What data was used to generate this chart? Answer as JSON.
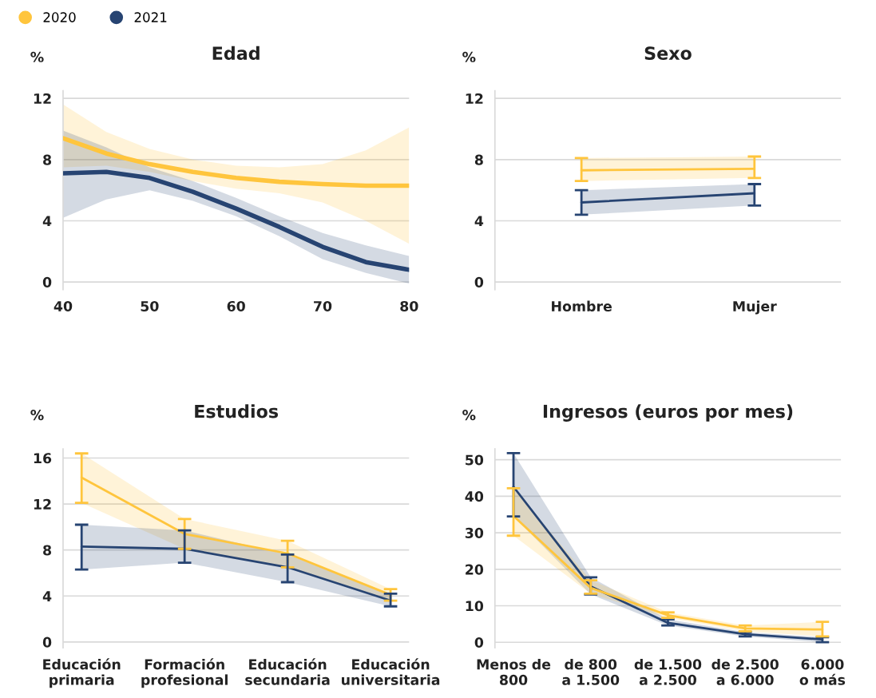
{
  "chart_data": [
    {
      "type": "line",
      "title": "Edad",
      "ylabel": "%",
      "xlim": [
        40,
        80
      ],
      "xticks": [
        40,
        50,
        60,
        70,
        80
      ],
      "ylim": [
        -0.5,
        12.5
      ],
      "yticks": [
        0,
        4,
        8,
        12
      ],
      "grid": "y",
      "legend": "top left",
      "marker": "none",
      "line_style": "solid",
      "x": [
        40,
        45,
        50,
        55,
        60,
        65,
        70,
        75,
        80
      ],
      "series": [
        {
          "name": "2020",
          "color": "#ffc53d",
          "values": [
            9.4,
            8.4,
            7.7,
            7.2,
            6.8,
            6.55,
            6.4,
            6.3,
            6.3
          ],
          "lower": [
            7.5,
            7.6,
            7.2,
            6.6,
            6.1,
            5.8,
            5.2,
            4.0,
            2.5
          ],
          "upper": [
            11.6,
            9.8,
            8.7,
            8.0,
            7.6,
            7.5,
            7.7,
            8.6,
            10.1
          ]
        },
        {
          "name": "2021",
          "color": "#274472",
          "values": [
            7.1,
            7.2,
            6.8,
            5.9,
            4.8,
            3.6,
            2.3,
            1.3,
            0.8
          ],
          "lower": [
            4.2,
            5.4,
            6.0,
            5.3,
            4.3,
            3.0,
            1.5,
            0.6,
            -0.1
          ],
          "upper": [
            9.9,
            8.8,
            7.5,
            6.6,
            5.5,
            4.3,
            3.2,
            2.4,
            1.7
          ]
        }
      ]
    },
    {
      "type": "line",
      "title": "Sexo",
      "ylabel": "%",
      "categories": [
        "Hombre",
        "Mujer"
      ],
      "ylim": [
        -0.5,
        12.5
      ],
      "yticks": [
        0,
        4,
        8,
        12
      ],
      "grid": "y",
      "marker": "none",
      "line_style": "solid",
      "series": [
        {
          "color": "#ffc53d",
          "values": [
            7.3,
            7.4
          ],
          "errors": [
            [
              6.6,
              8.1
            ],
            [
              6.8,
              8.2
            ]
          ],
          "lower": [
            6.6,
            6.8
          ],
          "upper": [
            8.1,
            8.2
          ]
        },
        {
          "color": "#274472",
          "values": [
            5.2,
            5.8
          ],
          "errors": [
            [
              4.4,
              6.0
            ],
            [
              5.0,
              6.4
            ]
          ],
          "lower": [
            4.4,
            5.0
          ],
          "upper": [
            6.0,
            6.4
          ]
        }
      ]
    },
    {
      "type": "line",
      "title": "Estudios",
      "ylabel": "%",
      "categories": [
        "Educación\nprimaria",
        "Formación\nprofesional",
        "Educación\nsecundaria",
        "Educación\nuniversitaria"
      ],
      "ylim": [
        -0.5,
        16.8
      ],
      "yticks": [
        0,
        4,
        8,
        12,
        16
      ],
      "grid": "y",
      "marker": "none",
      "line_style": "solid",
      "series": [
        {
          "color": "#ffc53d",
          "values": [
            14.3,
            9.4,
            7.7,
            4.1
          ],
          "errors": [
            [
              12.1,
              16.4
            ],
            [
              8.1,
              10.7
            ],
            [
              6.5,
              8.8
            ],
            [
              3.6,
              4.6
            ]
          ],
          "lower": [
            12.1,
            8.1,
            6.5,
            3.6
          ],
          "upper": [
            16.4,
            10.7,
            8.8,
            4.6
          ]
        },
        {
          "color": "#274472",
          "values": [
            8.3,
            8.1,
            6.5,
            3.6
          ],
          "errors": [
            [
              6.3,
              10.2
            ],
            [
              6.9,
              9.7
            ],
            [
              5.2,
              7.6
            ],
            [
              3.1,
              4.2
            ]
          ],
          "lower": [
            6.3,
            6.9,
            5.2,
            3.1
          ],
          "upper": [
            10.2,
            9.7,
            7.6,
            4.2
          ]
        }
      ]
    },
    {
      "type": "line",
      "title": "Ingresos (euros por mes)",
      "ylabel": "%",
      "categories": [
        "Menos de\n800",
        "de 800\na 1.500",
        "de 1.500\na 2.500",
        "de 2.500\na 6.000",
        "6.000\no más"
      ],
      "ylim": [
        -1.5,
        53
      ],
      "yticks": [
        0,
        10,
        20,
        30,
        40,
        50
      ],
      "grid": "y",
      "marker": "none",
      "line_style": "solid",
      "series": [
        {
          "color": "#274472",
          "values": [
            42.6,
            15.3,
            5.3,
            2.2,
            0.8
          ],
          "errors": [
            [
              34.5,
              51.8
            ],
            [
              13.1,
              17.8
            ],
            [
              4.6,
              6.3
            ],
            [
              1.6,
              2.8
            ],
            [
              0.0,
              1.4
            ]
          ],
          "lower": [
            34.5,
            13.1,
            4.6,
            1.6,
            0.0
          ],
          "upper": [
            51.8,
            17.8,
            6.3,
            2.8,
            1.4
          ]
        },
        {
          "color": "#ffc53d",
          "values": [
            34.6,
            14.9,
            7.4,
            3.8,
            3.5
          ],
          "errors": [
            [
              29.2,
              42.2
            ],
            [
              13.3,
              17.0
            ],
            [
              6.7,
              8.2
            ],
            [
              3.0,
              4.6
            ],
            [
              1.6,
              5.6
            ]
          ],
          "lower": [
            29.2,
            13.3,
            6.7,
            3.0,
            1.6
          ],
          "upper": [
            42.2,
            17.0,
            8.2,
            4.6,
            5.6
          ]
        }
      ]
    }
  ]
}
